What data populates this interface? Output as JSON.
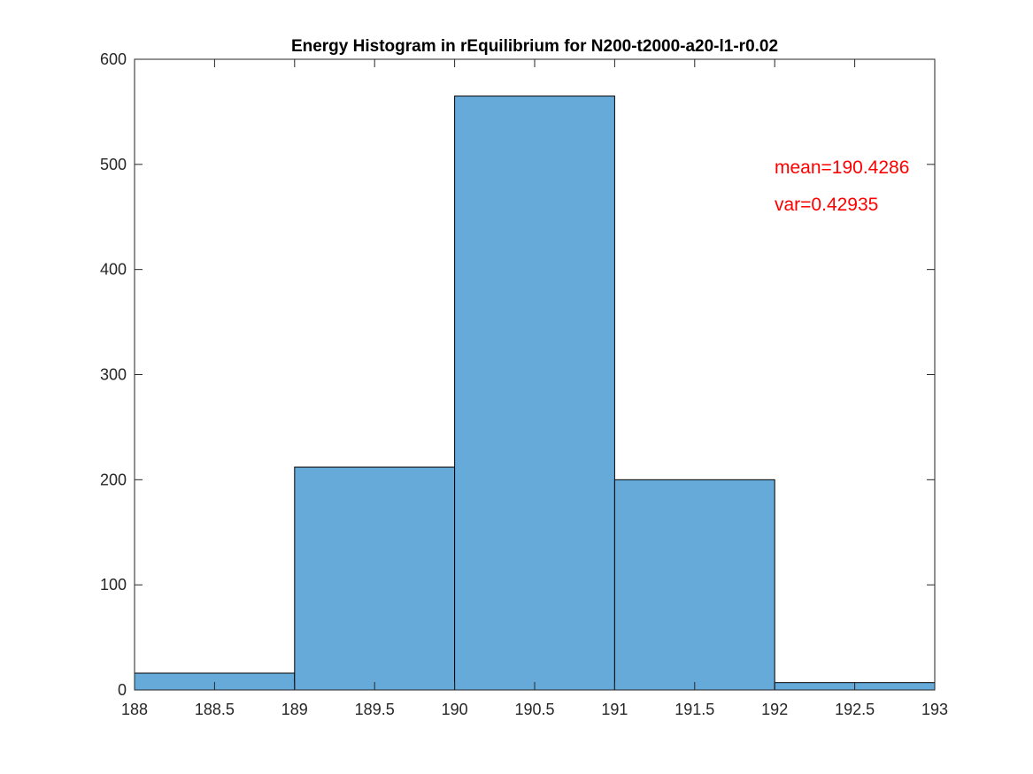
{
  "chart_data": {
    "type": "bar",
    "title": "Energy Histogram in rEquilibrium for N200-t2000-a20-l1-r0.02",
    "xlabel": "",
    "ylabel": "",
    "xlim": [
      188,
      193
    ],
    "ylim": [
      0,
      600
    ],
    "xticks": [
      "188",
      "188.5",
      "189",
      "189.5",
      "190",
      "190.5",
      "191",
      "191.5",
      "192",
      "192.5",
      "193"
    ],
    "yticks": [
      "0",
      "100",
      "200",
      "300",
      "400",
      "500",
      "600"
    ],
    "bins": [
      {
        "start": 188,
        "end": 189,
        "count": 16
      },
      {
        "start": 189,
        "end": 190,
        "count": 212
      },
      {
        "start": 190,
        "end": 191,
        "count": 565
      },
      {
        "start": 191,
        "end": 192,
        "count": 200
      },
      {
        "start": 192,
        "end": 193,
        "count": 7
      }
    ],
    "bar_color": "#66AADA",
    "bar_edge_color": "#000000",
    "grid": false,
    "annotations": [
      {
        "text": "mean=190.4286",
        "color": "#FF0000"
      },
      {
        "text": "var=0.42935",
        "color": "#FF0000"
      }
    ]
  }
}
